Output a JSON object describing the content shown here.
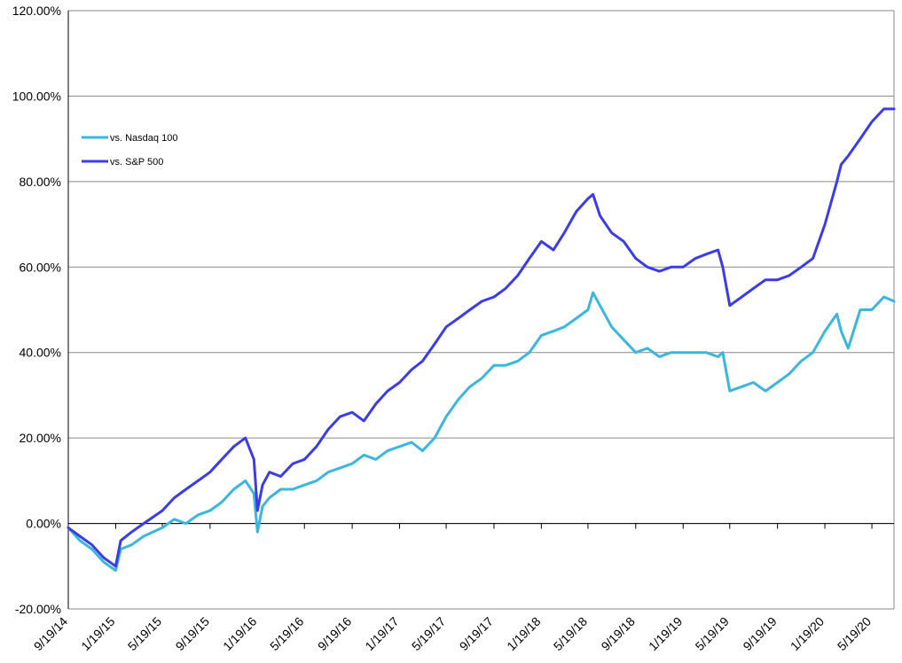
{
  "chart_data": {
    "type": "line",
    "title": "",
    "xlabel": "",
    "ylabel": "",
    "x_tick_labels": [
      "9/19/14",
      "1/19/15",
      "5/19/15",
      "9/19/15",
      "1/19/16",
      "5/19/16",
      "9/19/16",
      "1/19/17",
      "5/19/17",
      "9/19/17",
      "1/19/18",
      "5/19/18",
      "9/19/18",
      "1/19/19",
      "5/19/19",
      "9/19/19",
      "1/19/20",
      "5/19/20"
    ],
    "y_tick_labels": [
      "-20.00%",
      "0.00%",
      "20.00%",
      "40.00%",
      "60.00%",
      "80.00%",
      "100.00%",
      "120.00%"
    ],
    "ylim": [
      -20,
      120
    ],
    "xlim": [
      "9/19/14",
      "7/15/20"
    ],
    "grid": "horizontal",
    "legend_position": "top-left",
    "series": [
      {
        "name": "vs. Nasdaq 100",
        "color": "#3bb6dc",
        "x": [
          "9/19/14",
          "10/19/14",
          "11/19/14",
          "12/19/14",
          "1/19/15",
          "2/1/15",
          "3/1/15",
          "4/1/15",
          "5/19/15",
          "6/19/15",
          "7/19/15",
          "8/19/15",
          "9/19/15",
          "10/19/15",
          "11/19/15",
          "12/19/15",
          "1/10/16",
          "1/19/16",
          "2/1/16",
          "2/19/16",
          "3/19/16",
          "4/19/16",
          "5/19/16",
          "6/19/16",
          "7/19/16",
          "8/19/16",
          "9/19/16",
          "10/19/16",
          "11/19/16",
          "12/19/16",
          "1/19/17",
          "2/19/17",
          "3/19/17",
          "4/19/17",
          "5/19/17",
          "6/19/17",
          "7/19/17",
          "8/19/17",
          "9/19/17",
          "10/19/17",
          "11/19/17",
          "12/19/17",
          "1/19/18",
          "2/19/18",
          "3/19/18",
          "4/19/18",
          "5/19/18",
          "6/1/18",
          "6/19/18",
          "7/19/18",
          "8/19/18",
          "9/19/18",
          "10/19/18",
          "11/19/18",
          "12/19/18",
          "1/19/19",
          "2/19/19",
          "3/19/19",
          "4/19/19",
          "5/1/19",
          "5/19/19",
          "6/19/19",
          "7/19/19",
          "8/19/19",
          "9/19/19",
          "10/19/19",
          "11/19/19",
          "12/19/19",
          "1/19/20",
          "2/19/20",
          "3/1/20",
          "3/19/20",
          "4/19/20",
          "5/19/20",
          "6/19/20",
          "7/15/20"
        ],
        "values": [
          -1,
          -4,
          -6,
          -9,
          -11,
          -6,
          -5,
          -3,
          -1,
          1,
          0,
          2,
          3,
          5,
          8,
          10,
          7,
          -2,
          4,
          6,
          8,
          8,
          9,
          10,
          12,
          13,
          14,
          16,
          15,
          17,
          18,
          19,
          17,
          20,
          25,
          29,
          32,
          34,
          37,
          37,
          38,
          40,
          44,
          45,
          46,
          48,
          50,
          54,
          51,
          46,
          43,
          40,
          41,
          39,
          40,
          40,
          40,
          40,
          39,
          40,
          31,
          32,
          33,
          31,
          33,
          35,
          38,
          40,
          45,
          49,
          45,
          41,
          50,
          50,
          53,
          52
        ]
      },
      {
        "name": "vs. S&P 500",
        "color": "#3c3ce6",
        "x": [
          "9/19/14",
          "10/19/14",
          "11/19/14",
          "12/19/14",
          "1/19/15",
          "2/1/15",
          "3/1/15",
          "4/1/15",
          "5/19/15",
          "6/19/15",
          "7/19/15",
          "8/19/15",
          "9/19/15",
          "10/19/15",
          "11/19/15",
          "12/19/15",
          "1/10/16",
          "1/19/16",
          "2/1/16",
          "2/19/16",
          "3/19/16",
          "4/19/16",
          "5/19/16",
          "6/19/16",
          "7/19/16",
          "8/19/16",
          "9/19/16",
          "10/19/16",
          "11/19/16",
          "12/19/16",
          "1/19/17",
          "2/19/17",
          "3/19/17",
          "4/19/17",
          "5/19/17",
          "6/19/17",
          "7/19/17",
          "8/19/17",
          "9/19/17",
          "10/19/17",
          "11/19/17",
          "12/19/17",
          "1/19/18",
          "2/19/18",
          "3/19/18",
          "4/19/18",
          "5/19/18",
          "6/1/18",
          "6/19/18",
          "7/19/18",
          "8/19/18",
          "9/19/18",
          "10/19/18",
          "11/19/18",
          "12/19/18",
          "1/19/19",
          "2/19/19",
          "3/19/19",
          "4/19/19",
          "5/1/19",
          "5/19/19",
          "6/19/19",
          "7/19/19",
          "8/19/19",
          "9/19/19",
          "10/19/19",
          "11/19/19",
          "12/19/19",
          "1/19/20",
          "2/19/20",
          "3/1/20",
          "3/19/20",
          "4/19/20",
          "5/19/20",
          "6/19/20",
          "7/15/20"
        ],
        "values": [
          -1,
          -3,
          -5,
          -8,
          -10,
          -4,
          -2,
          0,
          3,
          6,
          8,
          10,
          12,
          15,
          18,
          20,
          15,
          3,
          9,
          12,
          11,
          14,
          15,
          18,
          22,
          25,
          26,
          24,
          28,
          31,
          33,
          36,
          38,
          42,
          46,
          48,
          50,
          52,
          53,
          55,
          58,
          62,
          66,
          64,
          68,
          73,
          76,
          77,
          72,
          68,
          66,
          62,
          60,
          59,
          60,
          60,
          62,
          63,
          64,
          60,
          51,
          53,
          55,
          57,
          57,
          58,
          60,
          62,
          70,
          80,
          84,
          86,
          90,
          94,
          97,
          97
        ]
      }
    ]
  }
}
